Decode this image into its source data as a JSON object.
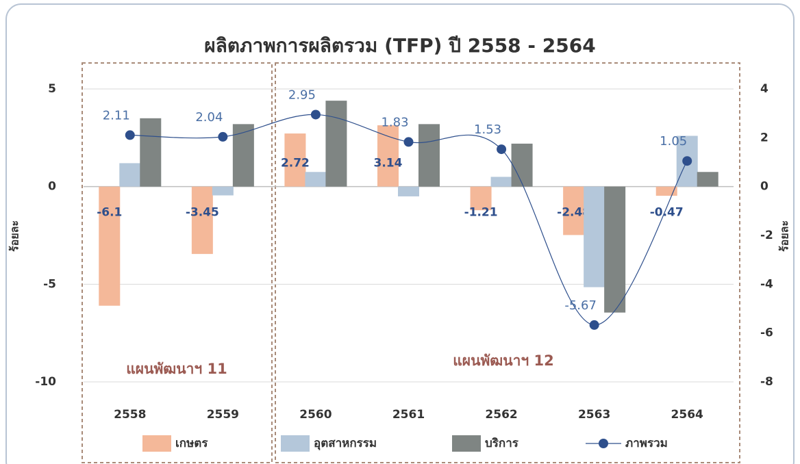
{
  "chart_data": {
    "type": "bar",
    "title": "ผลิตภาพการผลิตรวม (TFP) ปี 2558 - 2564",
    "categories": [
      "2558",
      "2559",
      "2560",
      "2561",
      "2562",
      "2563",
      "2564"
    ],
    "series": [
      {
        "name": "เกษตร",
        "color": "#f4b899",
        "labels": true,
        "values": [
          -6.1,
          -3.45,
          2.72,
          3.14,
          -1.21,
          -2.48,
          -0.47
        ]
      },
      {
        "name": "อุตสาหกรรม",
        "color": "#b4c7da",
        "values": [
          1.2,
          -0.45,
          0.75,
          -0.5,
          0.5,
          -5.15,
          2.6
        ]
      },
      {
        "name": "บริการ",
        "color": "#7f8583",
        "values": [
          3.5,
          3.2,
          4.4,
          3.2,
          2.2,
          -6.45,
          0.75
        ]
      },
      {
        "name": "ภาพรวม",
        "type": "line",
        "axis": "y2",
        "color": "#2e4f8c",
        "labels": true,
        "values": [
          2.11,
          2.04,
          2.95,
          1.83,
          1.53,
          -5.67,
          1.05
        ]
      }
    ],
    "ylabel": "ร้อยละ",
    "y2label": "ร้อยละ",
    "ylim": [
      -10,
      5
    ],
    "yticks": [
      -10,
      -5,
      0,
      5
    ],
    "y2lim": [
      -8,
      4
    ],
    "y2ticks": [
      -8,
      -6,
      -4,
      -2,
      0,
      2,
      4
    ],
    "grid": true,
    "legend": "bottom",
    "annotations": [
      "แผนพัฒนาฯ 11",
      "แผนพัฒนาฯ 12"
    ]
  }
}
